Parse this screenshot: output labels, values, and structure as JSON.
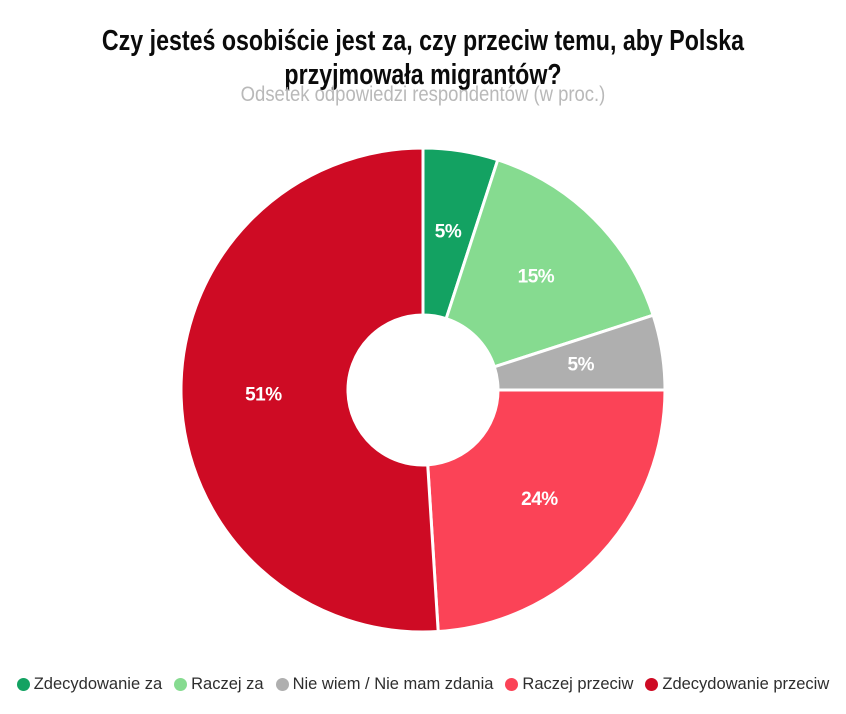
{
  "header": {
    "title_line1": "Czy jesteś osobiście jest za, czy przeciw temu, aby Polska",
    "title_line2": "przyjmowała migrantów?",
    "subtitle": "Odsetek odpowiedzi respondentów (w proc.)"
  },
  "chart_data": {
    "type": "pie",
    "variant": "donut",
    "title": "Czy jesteś osobiście jest za, czy przeciw temu, aby Polska przyjmowała migrantów?",
    "subtitle": "Odsetek odpowiedzi respondentów (w proc.)",
    "unit": "%",
    "start_angle_deg": 0,
    "direction": "clockwise",
    "inner_radius_ratio": 0.31,
    "legend_position": "bottom",
    "slice_border_color": "#ffffff",
    "label_color": "#ffffff",
    "segments": [
      {
        "label": "Zdecydowanie za",
        "value": 5,
        "color": "#13A262"
      },
      {
        "label": "Raczej za",
        "value": 15,
        "color": "#86DB90"
      },
      {
        "label": "Nie wiem / Nie mam zdania",
        "value": 5,
        "color": "#AFAFAF"
      },
      {
        "label": "Raczej przeciw",
        "value": 24,
        "color": "#FB4357"
      },
      {
        "label": "Zdecydowanie przeciw",
        "value": 51,
        "color": "#CE0B24"
      }
    ]
  }
}
